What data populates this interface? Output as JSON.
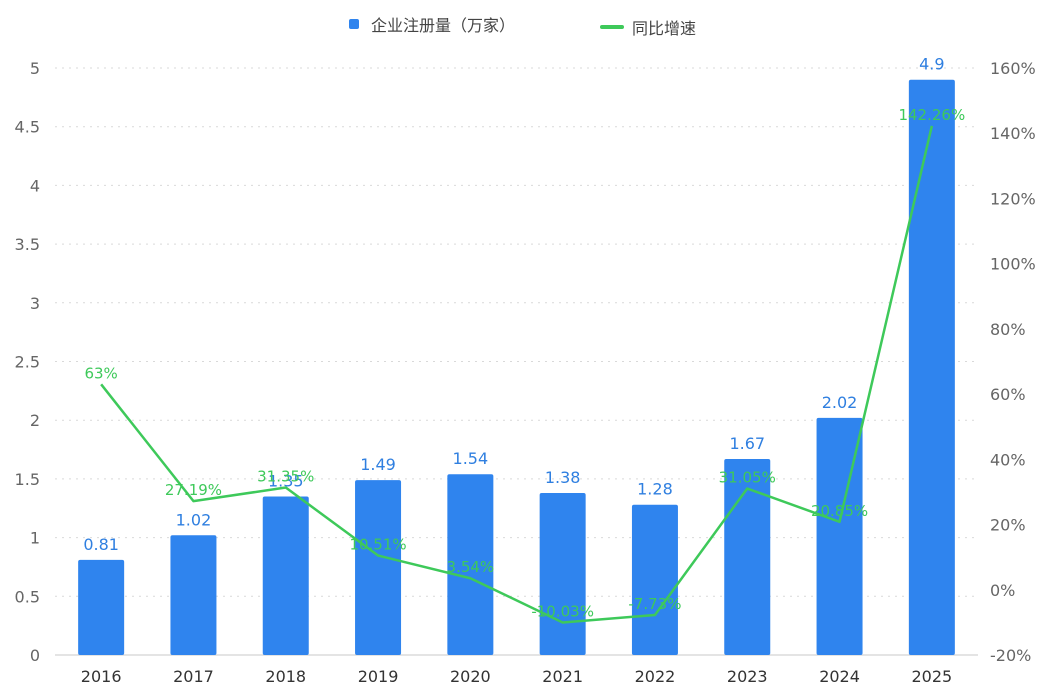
{
  "chart_data": {
    "type": "bar",
    "categories": [
      "2016",
      "2017",
      "2018",
      "2019",
      "2020",
      "2021",
      "2022",
      "2023",
      "2024",
      "2025"
    ],
    "series": [
      {
        "name": "企业注册量（万家）",
        "type": "bar",
        "axis": "left",
        "color": "#2f84ee",
        "values": [
          0.81,
          1.02,
          1.35,
          1.49,
          1.54,
          1.38,
          1.28,
          1.67,
          2.02,
          4.9
        ],
        "labels": [
          "0.81",
          "1.02",
          "1.35",
          "1.49",
          "1.54",
          "1.38",
          "1.28",
          "1.67",
          "2.02",
          "4.9"
        ]
      },
      {
        "name": "同比增速",
        "type": "line",
        "axis": "right",
        "color": "#3ec95a",
        "values": [
          63,
          27.19,
          31.35,
          10.51,
          3.54,
          -10.03,
          -7.73,
          31.05,
          20.85,
          142.26
        ],
        "labels": [
          "63%",
          "27.19%",
          "31.35%",
          "10.51%",
          "3.54%",
          "-10.03%",
          "-7.73%",
          "31.05%",
          "20.85%",
          "142.26%"
        ]
      }
    ],
    "y_left": {
      "range": [
        0,
        5
      ],
      "ticks": [
        "0",
        "0.5",
        "1",
        "1.5",
        "2",
        "2.5",
        "3",
        "3.5",
        "4",
        "4.5",
        "5"
      ]
    },
    "y_right": {
      "range": [
        -20,
        160
      ],
      "ticks": [
        "-20%",
        "0%",
        "20%",
        "40%",
        "60%",
        "80%",
        "100%",
        "120%",
        "140%",
        "160%"
      ]
    },
    "grid": true,
    "legend_position": "top"
  },
  "legend": {
    "bar_label": "企业注册量（万家）",
    "line_label": "同比增速"
  }
}
